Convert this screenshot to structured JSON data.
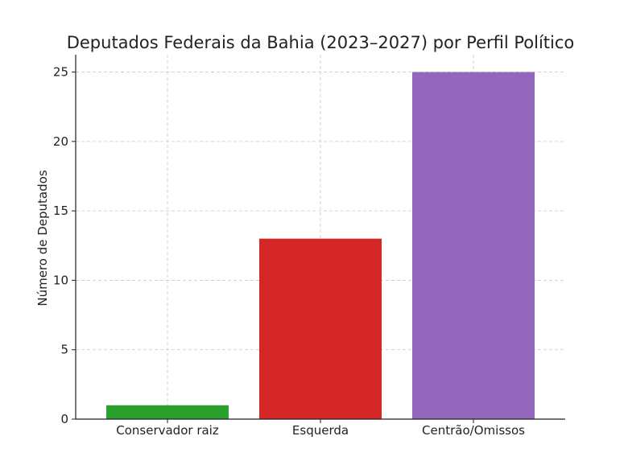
{
  "chart_data": {
    "type": "bar",
    "title": "Deputados Federais da Bahia (2023–2027) por Perfil Político",
    "xlabel": "",
    "ylabel": "Número de Deputados",
    "categories": [
      "Conservador raiz",
      "Esquerda",
      "Centrão/Omissos"
    ],
    "values": [
      1,
      13,
      25
    ],
    "colors": [
      "#2ca02c",
      "#d62728",
      "#9467bd"
    ],
    "ylim": [
      0,
      26.25
    ],
    "yticks": [
      0,
      5,
      10,
      15,
      20,
      25
    ],
    "grid": true,
    "legend": "none"
  }
}
